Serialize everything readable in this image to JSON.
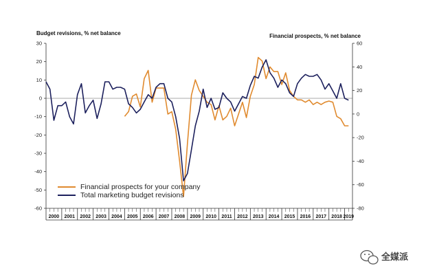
{
  "chart_data": {
    "type": "line",
    "title": "",
    "ylabel_left": "Budget revisions, % net balance",
    "ylabel_right": "Financial prospects, % net balance",
    "ylim_left": [
      -60,
      30
    ],
    "ylim_right": [
      -80,
      60
    ],
    "yticks_left": [
      30,
      20,
      10,
      0,
      -10,
      -20,
      -30,
      -40,
      -50,
      -60
    ],
    "yticks_right": [
      60,
      40,
      20,
      0,
      -20,
      -40,
      -60,
      -80
    ],
    "xlim": [
      2000.0,
      2019.5
    ],
    "years": [
      "2000",
      "2001",
      "2002",
      "2003",
      "2004",
      "2005",
      "2006",
      "2007",
      "2008",
      "2009",
      "2010",
      "2011",
      "2012",
      "2013",
      "2014",
      "2015",
      "2016",
      "2017",
      "2018",
      "2019"
    ],
    "legend_position": "bottom-left",
    "grid": false,
    "series": [
      {
        "name": "Financial prospects for your company",
        "axis": "right",
        "color": "#e08a2e",
        "points": [
          [
            2005.0,
            -2
          ],
          [
            2005.25,
            2
          ],
          [
            2005.5,
            15
          ],
          [
            2005.75,
            17
          ],
          [
            2006.0,
            6
          ],
          [
            2006.25,
            30
          ],
          [
            2006.5,
            37
          ],
          [
            2006.75,
            10
          ],
          [
            2007.0,
            22
          ],
          [
            2007.25,
            22
          ],
          [
            2007.5,
            22
          ],
          [
            2007.75,
            0
          ],
          [
            2008.0,
            2
          ],
          [
            2008.25,
            -13
          ],
          [
            2008.5,
            -40
          ],
          [
            2008.75,
            -70
          ],
          [
            2009.0,
            -25
          ],
          [
            2009.25,
            16
          ],
          [
            2009.5,
            29
          ],
          [
            2009.75,
            20
          ],
          [
            2010.0,
            15
          ],
          [
            2010.25,
            10
          ],
          [
            2010.5,
            8
          ],
          [
            2010.75,
            -5
          ],
          [
            2011.0,
            7
          ],
          [
            2011.25,
            -5
          ],
          [
            2011.5,
            -2
          ],
          [
            2011.75,
            5
          ],
          [
            2012.0,
            -10
          ],
          [
            2012.25,
            0
          ],
          [
            2012.5,
            10
          ],
          [
            2012.75,
            -3
          ],
          [
            2013.0,
            15
          ],
          [
            2013.25,
            25
          ],
          [
            2013.5,
            48
          ],
          [
            2013.75,
            45
          ],
          [
            2014.0,
            30
          ],
          [
            2014.25,
            40
          ],
          [
            2014.5,
            36
          ],
          [
            2014.75,
            36
          ],
          [
            2015.0,
            25
          ],
          [
            2015.25,
            35
          ],
          [
            2015.5,
            20
          ],
          [
            2015.75,
            15
          ],
          [
            2016.0,
            12
          ],
          [
            2016.25,
            12
          ],
          [
            2016.5,
            10
          ],
          [
            2016.75,
            12
          ],
          [
            2017.0,
            8
          ],
          [
            2017.25,
            10
          ],
          [
            2017.5,
            8
          ],
          [
            2017.75,
            10
          ],
          [
            2018.0,
            11
          ],
          [
            2018.25,
            10
          ],
          [
            2018.5,
            -2
          ],
          [
            2018.75,
            -4
          ],
          [
            2019.0,
            -10
          ],
          [
            2019.25,
            -10
          ]
        ]
      },
      {
        "name": "Total marketing budget revisions",
        "axis": "left",
        "color": "#1b1f5c",
        "points": [
          [
            2000.0,
            9
          ],
          [
            2000.25,
            5
          ],
          [
            2000.5,
            -12
          ],
          [
            2000.75,
            -4
          ],
          [
            2001.0,
            -4
          ],
          [
            2001.25,
            -2
          ],
          [
            2001.5,
            -10
          ],
          [
            2001.75,
            -14
          ],
          [
            2002.0,
            2
          ],
          [
            2002.25,
            8
          ],
          [
            2002.5,
            -8
          ],
          [
            2002.75,
            -4
          ],
          [
            2003.0,
            -1
          ],
          [
            2003.25,
            -11
          ],
          [
            2003.5,
            -3
          ],
          [
            2003.75,
            9
          ],
          [
            2004.0,
            9
          ],
          [
            2004.25,
            5
          ],
          [
            2004.5,
            6
          ],
          [
            2004.75,
            6
          ],
          [
            2005.0,
            5
          ],
          [
            2005.25,
            -3
          ],
          [
            2005.5,
            -5
          ],
          [
            2005.75,
            -8
          ],
          [
            2006.0,
            -6
          ],
          [
            2006.25,
            -2
          ],
          [
            2006.5,
            2
          ],
          [
            2006.75,
            0
          ],
          [
            2007.0,
            6
          ],
          [
            2007.25,
            8
          ],
          [
            2007.5,
            8
          ],
          [
            2007.75,
            0
          ],
          [
            2008.0,
            -2
          ],
          [
            2008.25,
            -10
          ],
          [
            2008.5,
            -22
          ],
          [
            2008.75,
            -45
          ],
          [
            2009.0,
            -41
          ],
          [
            2009.25,
            -28
          ],
          [
            2009.5,
            -15
          ],
          [
            2009.75,
            -7
          ],
          [
            2010.0,
            5
          ],
          [
            2010.25,
            -5
          ],
          [
            2010.5,
            0
          ],
          [
            2010.75,
            -6
          ],
          [
            2011.0,
            -5
          ],
          [
            2011.25,
            3
          ],
          [
            2011.5,
            0
          ],
          [
            2011.75,
            -2
          ],
          [
            2012.0,
            -7
          ],
          [
            2012.25,
            -3
          ],
          [
            2012.5,
            1
          ],
          [
            2012.75,
            0
          ],
          [
            2013.0,
            7
          ],
          [
            2013.25,
            12
          ],
          [
            2013.5,
            11
          ],
          [
            2013.75,
            17
          ],
          [
            2014.0,
            21
          ],
          [
            2014.25,
            14
          ],
          [
            2014.5,
            11
          ],
          [
            2014.75,
            6
          ],
          [
            2015.0,
            10
          ],
          [
            2015.25,
            8
          ],
          [
            2015.5,
            3
          ],
          [
            2015.75,
            1
          ],
          [
            2016.0,
            8
          ],
          [
            2016.25,
            11
          ],
          [
            2016.5,
            13
          ],
          [
            2016.75,
            12
          ],
          [
            2017.0,
            12
          ],
          [
            2017.25,
            13
          ],
          [
            2017.5,
            10
          ],
          [
            2017.75,
            5
          ],
          [
            2018.0,
            8
          ],
          [
            2018.25,
            4
          ],
          [
            2018.5,
            0
          ],
          [
            2018.75,
            8
          ],
          [
            2019.0,
            0
          ],
          [
            2019.25,
            -1
          ]
        ]
      }
    ]
  },
  "watermark": {
    "text": "全媒派",
    "icon": "wechat-icon"
  }
}
